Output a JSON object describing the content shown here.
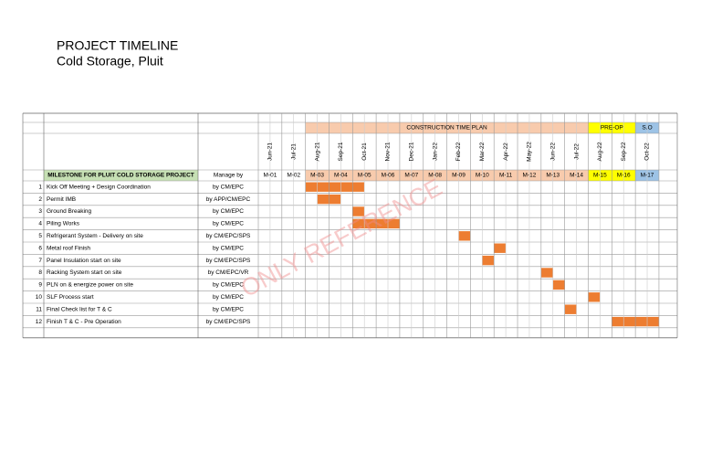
{
  "header": {
    "title": "PROJECT TIMELINE",
    "subtitle": "Cold Storage, Pluit"
  },
  "table": {
    "plan_label": "CONSTRUCTION TIME PLAN",
    "preop_label": "PRE-OP",
    "so_label": "S.O",
    "milestone_header": "MILESTONE FOR PLUIT COLD STORAGE PROJECT",
    "manage_header": "Manage by",
    "months": [
      "Jun-21",
      "Jul-21",
      "Aug-21",
      "Sep-21",
      "Oct-21",
      "Nov-21",
      "Dec-21",
      "Jan-22",
      "Feb-22",
      "Mar-22",
      "Apr-22",
      "May-22",
      "Jun-22",
      "Jul-22",
      "Aug-22",
      "Sep-22",
      "Oct-22"
    ],
    "month_codes": [
      "M-01",
      "M-02",
      "M-03",
      "M-04",
      "M-05",
      "M-06",
      "M-07",
      "M-08",
      "M-09",
      "M-10",
      "M-11",
      "M-12",
      "M-13",
      "M-14",
      "M-15",
      "M-16",
      "M-17"
    ],
    "rows": [
      [
        1,
        "Kick Off Meeting + Design Coordination",
        "by CM/EPC"
      ],
      [
        2,
        "Permit IMB",
        "by APP/CM/EPC"
      ],
      [
        3,
        "Ground Breaking",
        "by CM/EPC"
      ],
      [
        4,
        "Piling Works",
        "by CM/EPC"
      ],
      [
        5,
        "Refrigerant System - Delivery on site",
        "by CM/EPC/SPS"
      ],
      [
        6,
        "Metal roof Finish",
        "by CM/EPC"
      ],
      [
        7,
        "Panel Insulation start on site",
        "by CM/EPC/SPS"
      ],
      [
        8,
        "Racking System start on site",
        "by CM/EPC/VR"
      ],
      [
        9,
        "PLN on & energize power on site",
        "by CM/EPC"
      ],
      [
        10,
        "SLF Process start",
        "by CM/EPC"
      ],
      [
        11,
        "Final Check list for T & C",
        "by CM/EPC"
      ],
      [
        12,
        "Finish T & C - Pre Operation",
        "by CM/EPC/SPS"
      ]
    ]
  },
  "watermark": "ONLY REFERENCE"
}
